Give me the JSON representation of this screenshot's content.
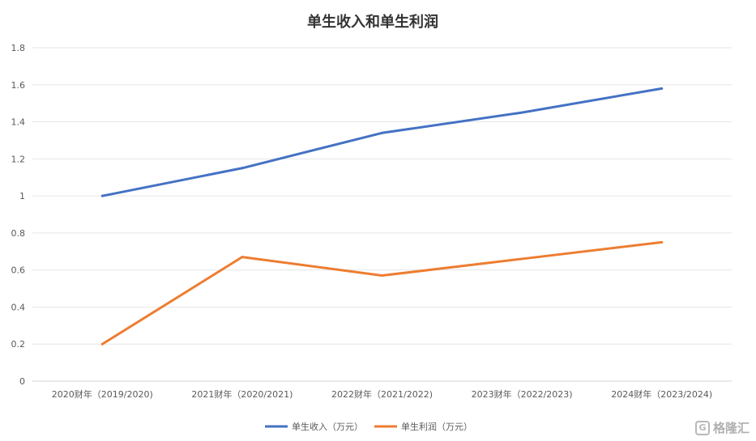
{
  "chart_data": {
    "type": "line",
    "title": "单生收入和单生利润",
    "categories": [
      "2020财年（2019/2020)",
      "2021财年（2020/2021)",
      "2022财年（2021/2022)",
      "2023财年（2022/2023)",
      "2024财年（2023/2024)"
    ],
    "ylim": [
      0,
      1.8
    ],
    "yticks": [
      0,
      0.2,
      0.4,
      0.6,
      0.8,
      1,
      1.2,
      1.4,
      1.6,
      1.8
    ],
    "ytick_labels": [
      "0",
      "0.2",
      "0.4",
      "0.6",
      "0.8",
      "1",
      "1.2",
      "1.4",
      "1.6",
      "1.8"
    ],
    "grid": true,
    "legend_position": "bottom",
    "series": [
      {
        "name": "单生收入（万元）",
        "color": "#4472c4",
        "values": [
          1.0,
          1.15,
          1.34,
          1.45,
          1.58
        ]
      },
      {
        "name": "单生利润（万元）",
        "color": "#ed7d31",
        "values": [
          0.2,
          0.67,
          0.57,
          0.66,
          0.75
        ]
      }
    ]
  },
  "watermark": {
    "text": "格隆汇",
    "icon": "gelonghui-logo-icon"
  }
}
